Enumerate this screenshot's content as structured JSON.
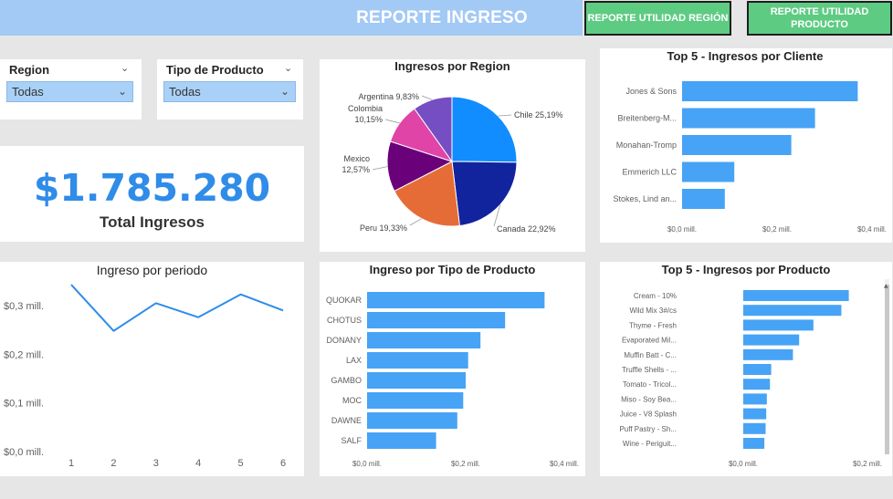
{
  "header": {
    "title": "REPORTE INGRESO",
    "btn_region": "REPORTE UTILIDAD REGIÓN",
    "btn_producto": "REPORTE UTILIDAD PRODUCTO"
  },
  "slicers": {
    "region": {
      "label": "Region",
      "value": "Todas"
    },
    "tipo": {
      "label": "Tipo de Producto",
      "value": "Todas"
    }
  },
  "kpi": {
    "value": "$1.785.280",
    "label": "Total Ingresos"
  },
  "colors": {
    "accent": "#2f8ce8",
    "bar": "#47a3f5",
    "line": "#2f8ce8",
    "button": "#5ecb83",
    "header": "#a3c9f5"
  },
  "chart_data": [
    {
      "id": "pie",
      "type": "pie",
      "title": "Ingresos por Region",
      "slices": [
        {
          "label": "Chile",
          "pct": 25.19,
          "text": "Chile 25,19%",
          "color": "#118dff"
        },
        {
          "label": "Canada",
          "pct": 22.92,
          "text": "Canada 22,92%",
          "color": "#12239e"
        },
        {
          "label": "Peru",
          "pct": 19.33,
          "text": "Peru 19,33%",
          "color": "#e66c37"
        },
        {
          "label": "Mexico",
          "pct": 12.57,
          "text": "Mexico 12,57%",
          "color": "#6b007b"
        },
        {
          "label": "Colombia",
          "pct": 10.15,
          "text": "Colombia 10,15%",
          "color": "#e044a7"
        },
        {
          "label": "Argentina",
          "pct": 9.83,
          "text": "Argentina 9,83%",
          "color": "#744ec2"
        }
      ]
    },
    {
      "id": "clientes",
      "type": "bar",
      "title": "Top 5 - Ingresos por Cliente",
      "categories": [
        "Jones & Sons",
        "Breitenberg-M...",
        "Monahan-Tromp",
        "Emmerich LLC",
        "Stokes, Lind an..."
      ],
      "values": [
        0.37,
        0.28,
        0.23,
        0.11,
        0.09
      ],
      "ticks": [
        0,
        0.2,
        0.4
      ],
      "tick_labels": [
        "$0,0 mill.",
        "$0,2 mill.",
        "$0,4 mill."
      ]
    },
    {
      "id": "periodo",
      "type": "line",
      "title": "Ingreso por periodo",
      "x": [
        1,
        2,
        3,
        4,
        5,
        6
      ],
      "y": [
        0.343,
        0.248,
        0.305,
        0.276,
        0.323,
        0.29
      ],
      "ylim": [
        0,
        0.3
      ],
      "yticks": [
        0,
        0.1,
        0.2,
        0.3
      ],
      "ytick_labels": [
        "$0,0 mill.",
        "$0,1 mill.",
        "$0,2 mill.",
        "$0,3 mill."
      ]
    },
    {
      "id": "tipo",
      "type": "bar",
      "title": "Ingreso por Tipo de Producto",
      "categories": [
        "QUOKAR",
        "CHOTUS",
        "DONANY",
        "LAX",
        "GAMBO",
        "MOC",
        "DAWNE",
        "SALF"
      ],
      "values": [
        0.36,
        0.28,
        0.23,
        0.205,
        0.2,
        0.195,
        0.183,
        0.14
      ],
      "ticks": [
        0,
        0.2,
        0.4
      ],
      "tick_labels": [
        "$0,0 mill.",
        "$0,2 mill.",
        "$0,4 mill."
      ]
    },
    {
      "id": "productos",
      "type": "bar",
      "title": "Top 5 - Ingresos por Producto",
      "categories": [
        "Cream - 10%",
        "Wild Mix 3#/cs",
        "Thyme - Fresh",
        "Evaporated Mil...",
        "Muffin Batt - C...",
        "Truffle Shells - ...",
        "Tomato - Tricol...",
        "Miso - Soy Bea...",
        "Juice - V8 Splash",
        "Puff Pastry - Sh...",
        "Wine - Periguit..."
      ],
      "values": [
        0.17,
        0.158,
        0.113,
        0.09,
        0.08,
        0.045,
        0.043,
        0.038,
        0.037,
        0.036,
        0.034
      ],
      "ticks": [
        0,
        0.2
      ],
      "tick_labels": [
        "$0,0 mill.",
        "$0,2 mill."
      ]
    }
  ]
}
